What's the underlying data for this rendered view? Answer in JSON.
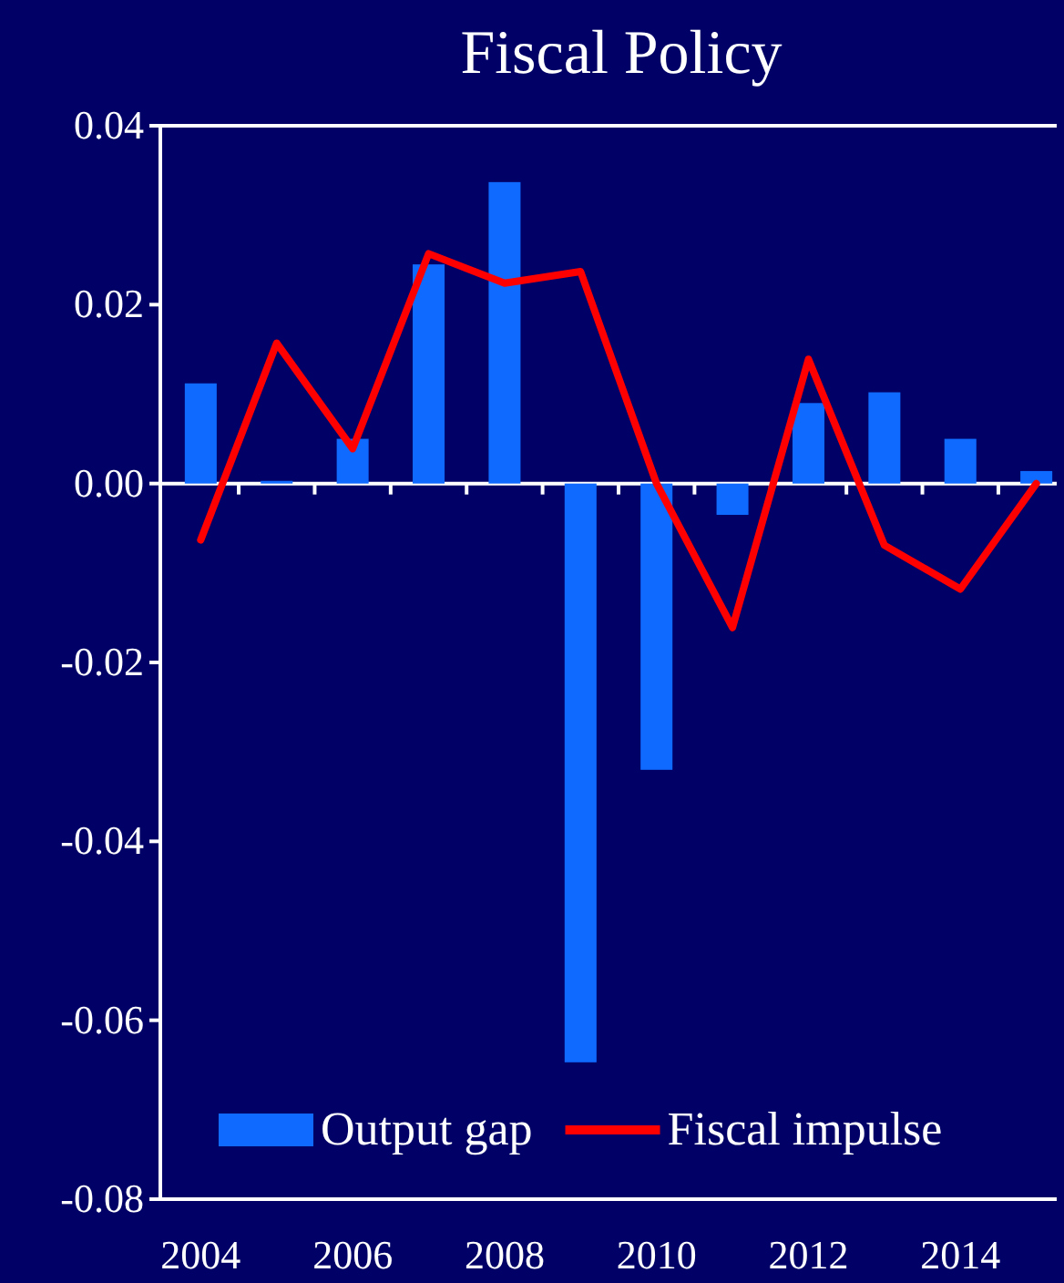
{
  "chart_data": {
    "type": "bar",
    "title": "Fiscal Policy",
    "categories": [
      "2004",
      null,
      "2006",
      null,
      "2008",
      null,
      "2010",
      null,
      "2012",
      null,
      "2014",
      null
    ],
    "series": [
      {
        "name": "Output gap",
        "color": "#0f6bff",
        "values": [
          0.0112,
          0.0003,
          0.005,
          0.0245,
          0.0337,
          -0.0647,
          -0.032,
          -0.0035,
          0.009,
          0.0102,
          0.005,
          0.0014
        ]
      },
      {
        "name": "Fiscal impulse",
        "type": "line",
        "color": "#ff0000",
        "values": [
          -0.0063,
          0.0157,
          0.0039,
          0.0257,
          0.0224,
          0.0237,
          0.0,
          -0.0161,
          0.0139,
          -0.0069,
          -0.0118,
          0.0
        ]
      }
    ],
    "ylim": [
      -0.08,
      0.04
    ],
    "yticks": [
      {
        "value": -0.08,
        "label": "-0.08"
      },
      {
        "value": -0.06,
        "label": "-0.06"
      },
      {
        "value": -0.04,
        "label": "-0.04"
      },
      {
        "value": -0.02,
        "label": "-0.02"
      },
      {
        "value": 0,
        "label": "0.00"
      },
      {
        "value": 0.02,
        "label": "0.02"
      },
      {
        "value": 0.04,
        "label": "0.04"
      }
    ],
    "legend": "bottom",
    "marker": "none",
    "line_style": "solid"
  }
}
